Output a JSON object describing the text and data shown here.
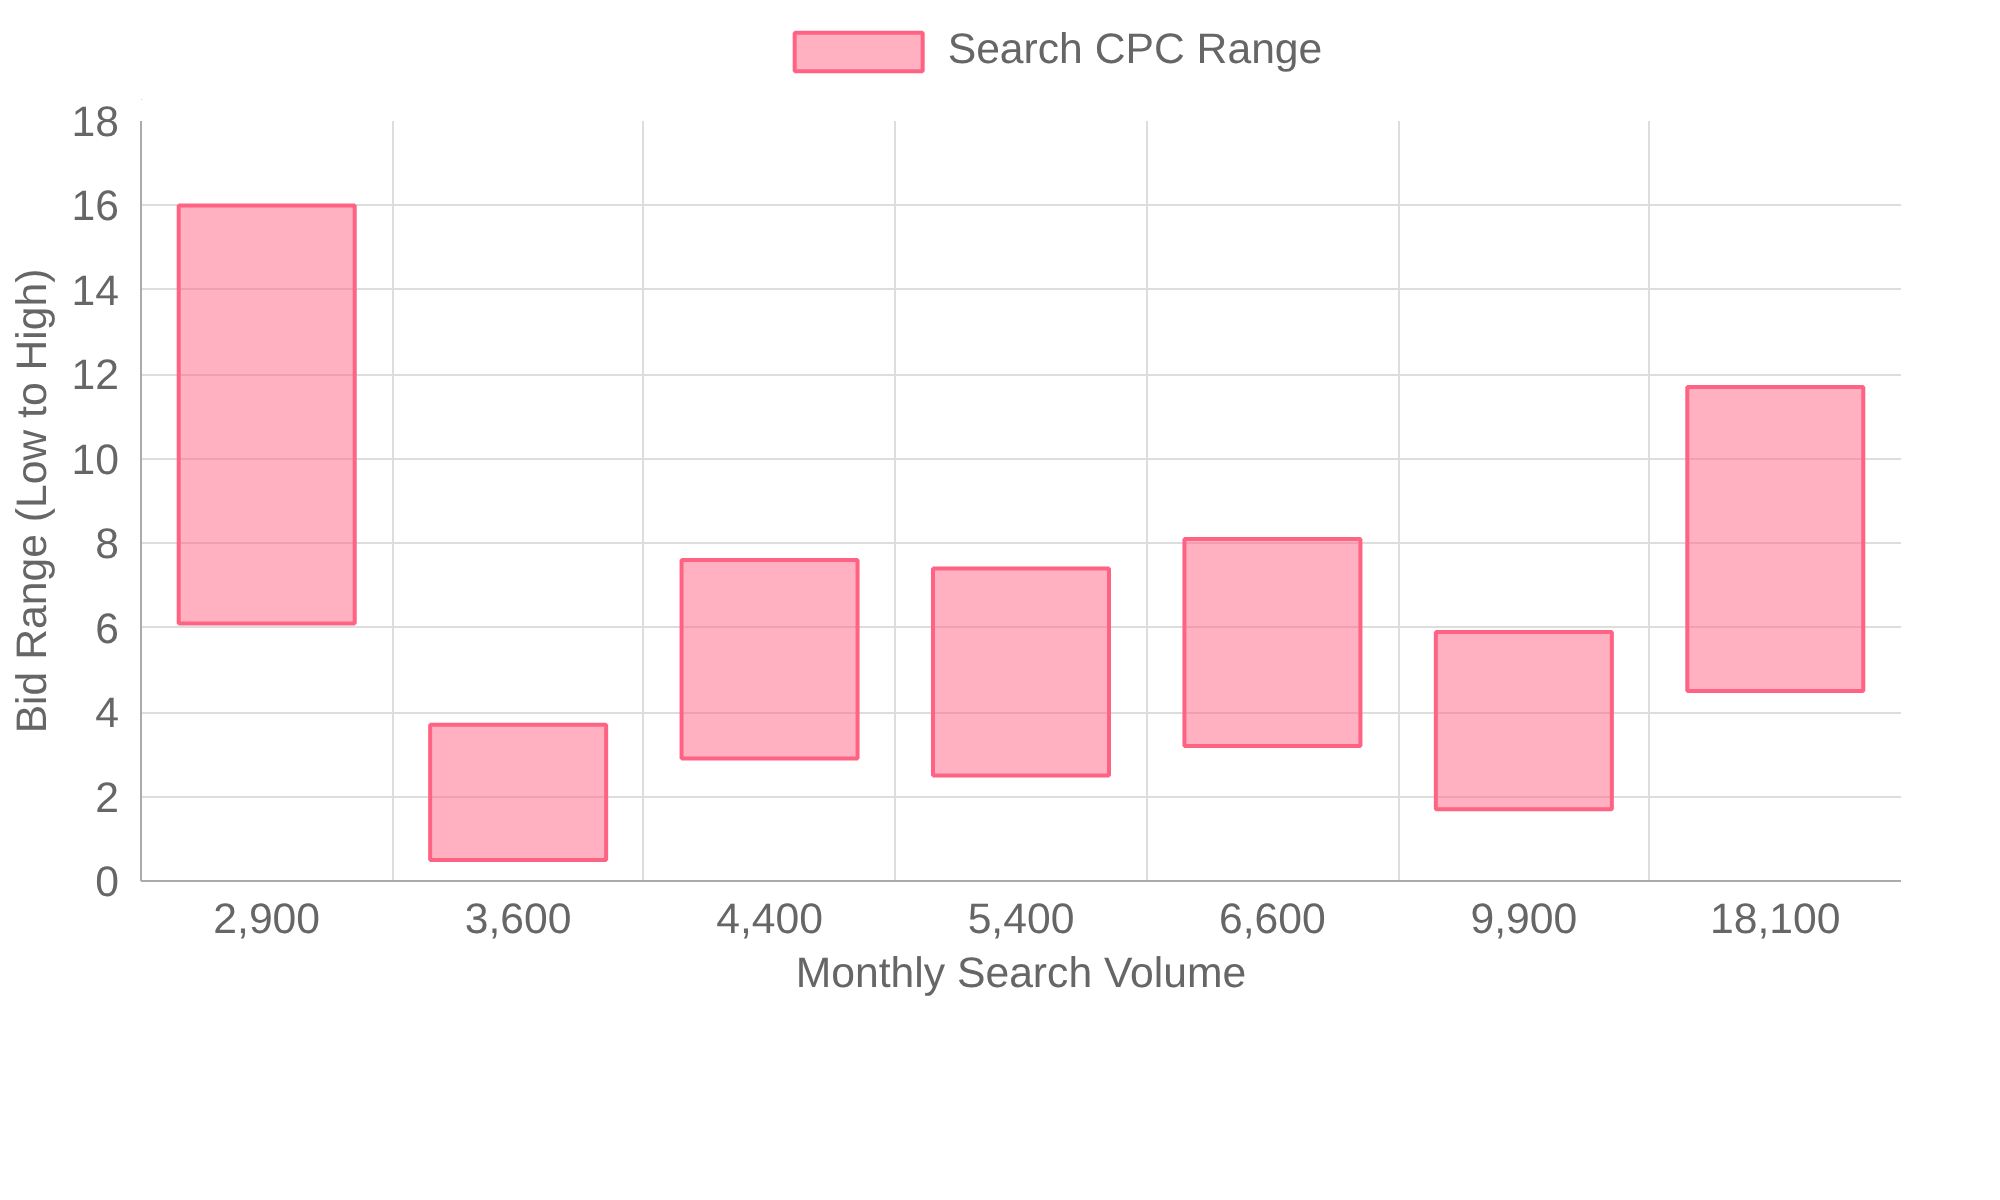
{
  "chart_data": {
    "type": "bar",
    "xlabel": "Monthly Search Volume",
    "ylabel": "Bid Range (Low to High)",
    "categories": [
      "2,900",
      "3,600",
      "4,400",
      "5,400",
      "6,600",
      "9,900",
      "18,100"
    ],
    "series": [
      {
        "name": "Search CPC Range",
        "color": "#ff6384",
        "base": [
          6.1,
          0.5,
          2.9,
          2.5,
          3.2,
          1.7,
          4.5
        ],
        "values": [
          9.9,
          3.2,
          4.7,
          4.9,
          4.9,
          4.2,
          7.2
        ]
      }
    ],
    "ylim": [
      0,
      18
    ],
    "yticks": [
      0,
      2,
      4,
      6,
      8,
      10,
      12,
      14,
      16,
      18
    ],
    "grid": true,
    "legend": "top"
  }
}
